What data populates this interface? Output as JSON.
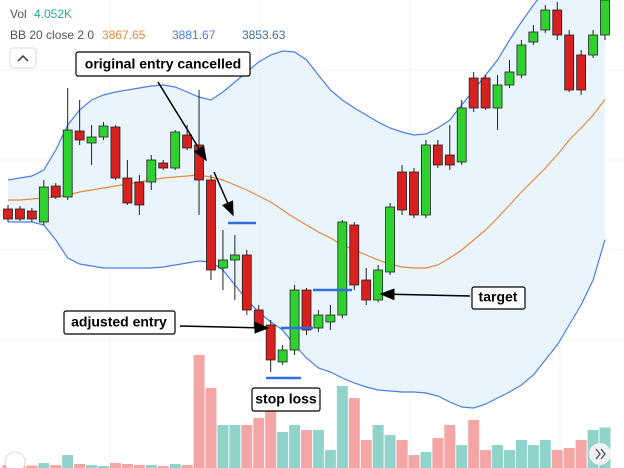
{
  "chart_data": {
    "type": "candlestick",
    "ylim": [
      3830.8,
      3877.6
    ],
    "up_color": "#2fd12f",
    "down_color": "#d8201f",
    "open": [
      3856.7,
      3856.7,
      3856.5,
      3855.4,
      3859.0,
      3857.9,
      3864.5,
      3863.3,
      3863.9,
      3864.9,
      3859.8,
      3859.4,
      3859.4,
      3861.3,
      3860.8,
      3864.1,
      3863.1,
      3859.6,
      3850.8,
      3851.6,
      3852.1,
      3846.6,
      3845.1,
      3841.4,
      3842.6,
      3848.6,
      3844.8,
      3845.4,
      3846.1,
      3855.1,
      3849.6,
      3847.6,
      3850.4,
      3860.4,
      3860.4,
      3856.1,
      3863.1,
      3862.1,
      3861.4,
      3869.8,
      3869.8,
      3866.8,
      3869.1,
      3870.1,
      3873.4,
      3874.6,
      3876.6,
      3874.1,
      3872.1,
      3872.1,
      3874.1
    ],
    "high": [
      3857.1,
      3857.0,
      3856.8,
      3859.6,
      3859.3,
      3868.8,
      3867.6,
      3865.1,
      3865.4,
      3865.1,
      3861.6,
      3860.1,
      3862.1,
      3861.6,
      3864.6,
      3865.1,
      3868.6,
      3860.1,
      3854.6,
      3854.1,
      3852.6,
      3847.1,
      3845.6,
      3843.1,
      3849.1,
      3848.8,
      3846.6,
      3847.1,
      3855.6,
      3855.4,
      3850.8,
      3851.1,
      3857.3,
      3861.1,
      3860.8,
      3863.6,
      3863.6,
      3865.1,
      3867.6,
      3870.4,
      3870.1,
      3870.1,
      3871.6,
      3873.6,
      3875.1,
      3877.1,
      3877.4,
      3874.6,
      3872.6,
      3874.6,
      3877.6
    ],
    "low": [
      3855.4,
      3855.5,
      3855.4,
      3855.1,
      3857.7,
      3857.6,
      3863.1,
      3861.1,
      3863.6,
      3859.6,
      3857.1,
      3856.1,
      3858.6,
      3860.6,
      3860.6,
      3862.6,
      3856.1,
      3849.6,
      3848.6,
      3847.6,
      3846.1,
      3844.6,
      3840.4,
      3841.1,
      3842.1,
      3844.1,
      3844.4,
      3844.6,
      3845.8,
      3848.6,
      3847.1,
      3847.4,
      3850.1,
      3856.1,
      3855.8,
      3855.8,
      3860.8,
      3860.6,
      3861.1,
      3866.4,
      3866.6,
      3864.6,
      3868.8,
      3869.8,
      3873.1,
      3874.3,
      3873.6,
      3868.4,
      3868.1,
      3871.8,
      3873.6
    ],
    "close": [
      3855.7,
      3855.7,
      3855.7,
      3858.9,
      3857.9,
      3864.6,
      3863.6,
      3863.9,
      3865.0,
      3859.8,
      3857.3,
      3857.1,
      3861.6,
      3860.8,
      3864.4,
      3862.8,
      3859.6,
      3850.6,
      3851.6,
      3852.1,
      3846.6,
      3844.8,
      3841.6,
      3842.6,
      3848.6,
      3844.6,
      3846.1,
      3846.1,
      3855.4,
      3849.1,
      3847.6,
      3850.6,
      3856.9,
      3856.6,
      3856.1,
      3863.1,
      3861.1,
      3861.1,
      3866.8,
      3866.8,
      3866.8,
      3869.1,
      3870.4,
      3873.1,
      3874.4,
      3876.6,
      3874.1,
      3868.6,
      3868.6,
      3874.1,
      3877.6
    ],
    "bands": {
      "label": "BB 20 close 2 0",
      "basis_color": "#e8893a",
      "upper_color": "#4a7fe0",
      "lower_color": "#3f6f9f",
      "line_color": "#4a7fe0",
      "fill": "#e4f1fb",
      "basis": [
        3857.6,
        3857.6,
        3857.7,
        3857.8,
        3857.9,
        3858.1,
        3858.4,
        3858.6,
        3858.8,
        3859.0,
        3859.2,
        3859.4,
        3859.6,
        3859.8,
        3859.9,
        3860.0,
        3860.1,
        3859.9,
        3859.6,
        3859.1,
        3858.6,
        3858.0,
        3857.4,
        3856.6,
        3855.8,
        3855.1,
        3854.4,
        3853.8,
        3853.1,
        3852.6,
        3852.1,
        3851.6,
        3851.2,
        3850.9,
        3850.8,
        3850.8,
        3851.1,
        3851.8,
        3852.6,
        3853.6,
        3854.6,
        3855.8,
        3857.1,
        3858.4,
        3859.6,
        3860.8,
        3862.1,
        3863.6,
        3864.8,
        3866.1,
        3867.65
      ],
      "upper": [
        3859.6,
        3859.8,
        3860.0,
        3860.6,
        3862.6,
        3865.1,
        3866.6,
        3867.6,
        3868.1,
        3868.4,
        3868.6,
        3868.8,
        3869.0,
        3869.1,
        3868.9,
        3868.4,
        3867.9,
        3867.6,
        3868.4,
        3869.4,
        3870.4,
        3871.4,
        3872.1,
        3872.5,
        3872.4,
        3871.6,
        3870.1,
        3868.6,
        3867.6,
        3866.8,
        3866.1,
        3865.4,
        3864.8,
        3864.4,
        3864.1,
        3864.2,
        3864.8,
        3865.6,
        3867.1,
        3868.6,
        3870.1,
        3871.6,
        3873.6,
        3875.4,
        3877.1,
        3878.6,
        3880.1,
        3881.1,
        3881.6,
        3881.8,
        3881.67
      ],
      "lower": [
        3855.4,
        3855.4,
        3855.4,
        3855.1,
        3853.6,
        3851.8,
        3851.2,
        3851.0,
        3850.8,
        3850.8,
        3850.8,
        3850.8,
        3850.8,
        3850.9,
        3851.1,
        3851.3,
        3851.5,
        3851.4,
        3850.6,
        3849.1,
        3847.6,
        3846.4,
        3845.4,
        3844.6,
        3843.1,
        3841.8,
        3840.8,
        3840.4,
        3839.8,
        3839.3,
        3838.9,
        3838.6,
        3838.5,
        3838.4,
        3838.4,
        3838.3,
        3838.0,
        3837.4,
        3836.9,
        3836.8,
        3837.2,
        3837.8,
        3838.4,
        3839.1,
        3840.1,
        3841.6,
        3843.1,
        3845.1,
        3847.1,
        3849.6,
        3853.63
      ]
    },
    "volume": {
      "name": "Vol",
      "last_label": "4.052K",
      "up_color": "#8fd3ca",
      "down_color": "#f4a5a5",
      "label_color": "#26a69a",
      "values": [
        300,
        200,
        250,
        500,
        300,
        1300,
        400,
        300,
        200,
        500,
        400,
        300,
        300,
        200,
        400,
        300,
        11300,
        8000,
        4300,
        4300,
        4300,
        5000,
        7300,
        3600,
        4300,
        3800,
        3800,
        1800,
        8200,
        7000,
        2800,
        4300,
        3300,
        2800,
        1300,
        1600,
        3000,
        4300,
        2300,
        4800,
        1800,
        2300,
        1800,
        2800,
        2300,
        2800,
        1800,
        2000,
        2800,
        3800,
        4052
      ]
    },
    "annotations": {
      "original": "original entry cancelled",
      "adjusted": "adjusted entry",
      "stop": "stop loss",
      "target": "target"
    }
  }
}
